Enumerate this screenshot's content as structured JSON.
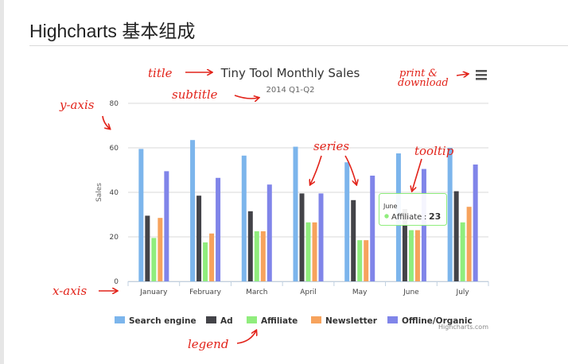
{
  "page": {
    "heading": "Highcharts 基本组成"
  },
  "annotations": {
    "title": "title",
    "subtitle": "subtitle",
    "y_axis": "y-axis",
    "x_axis": "x-axis",
    "series": "series",
    "tooltip": "tooltip",
    "legend": "legend",
    "print_line1": "print &",
    "print_line2": "download"
  },
  "tooltip": {
    "header": "June",
    "series": "Affiliate",
    "value": "23",
    "color": "#90ed7d"
  },
  "menu_icon": "hamburger-menu-icon",
  "chart_data": {
    "type": "bar",
    "title": "Tiny Tool Monthly Sales",
    "subtitle": "2014 Q1-Q2",
    "xlabel": "",
    "ylabel": "Sales",
    "ylim": [
      0,
      80
    ],
    "yticks": [
      0,
      20,
      40,
      60,
      80
    ],
    "grid": true,
    "legend_position": "bottom",
    "credits": "Highcharts.com",
    "categories": [
      "January",
      "February",
      "March",
      "April",
      "May",
      "June",
      "July"
    ],
    "series": [
      {
        "name": "Search engine",
        "color": "#7cb5ec",
        "values": [
          59.5,
          63.5,
          56.5,
          60.5,
          53.5,
          57.5,
          60
        ]
      },
      {
        "name": "Ad",
        "color": "#434348",
        "values": [
          29.5,
          38.5,
          31.5,
          39.5,
          36.5,
          32.5,
          40.5
        ]
      },
      {
        "name": "Affiliate",
        "color": "#90ed7d",
        "values": [
          19.5,
          17.5,
          22.5,
          26.5,
          18.5,
          23,
          26.5
        ]
      },
      {
        "name": "Newsletter",
        "color": "#f7a35c",
        "values": [
          28.5,
          21.5,
          22.5,
          26.5,
          18.5,
          23,
          33.5
        ]
      },
      {
        "name": "Offline/Organic",
        "color": "#8085e9",
        "values": [
          49.5,
          46.5,
          43.5,
          39.5,
          47.5,
          50.5,
          52.5
        ]
      }
    ]
  }
}
